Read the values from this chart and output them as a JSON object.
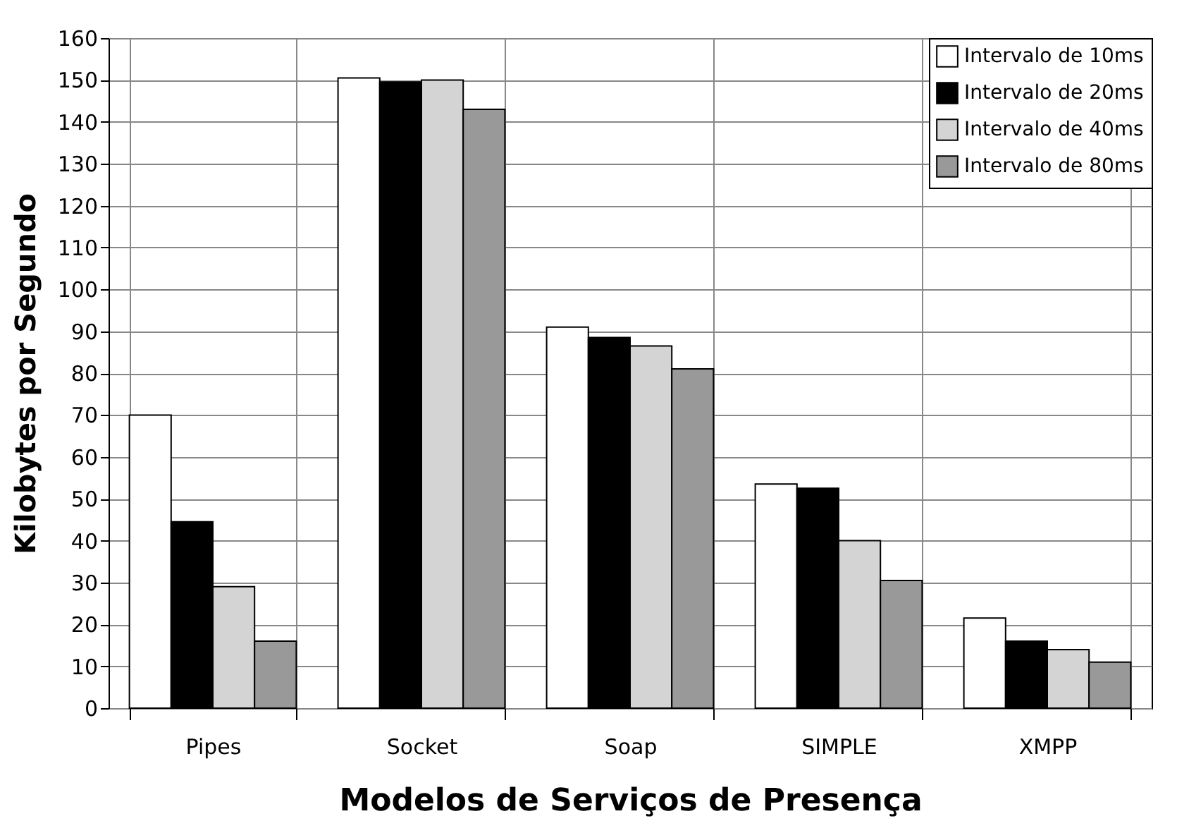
{
  "chart_data": {
    "type": "bar",
    "xlabel": "Modelos de Serviços de Presença",
    "ylabel": "Kilobytes por Segundo",
    "categories": [
      "Pipes",
      "Socket",
      "Soap",
      "SIMPLE",
      "XMPP"
    ],
    "series": [
      {
        "name": "Intervalo de 10ms",
        "color": "#ffffff",
        "values": [
          70,
          150.5,
          91,
          53.5,
          21.5
        ]
      },
      {
        "name": "Intervalo de 20ms",
        "color": "#000000",
        "values": [
          44.5,
          149.5,
          88.5,
          52.5,
          16
        ]
      },
      {
        "name": "Intervalo de 40ms",
        "color": "#d4d4d4",
        "values": [
          29,
          150,
          86.5,
          40,
          14
        ]
      },
      {
        "name": "Intervalo de 80ms",
        "color": "#999999",
        "values": [
          16,
          143,
          81,
          30.5,
          11
        ]
      }
    ],
    "ylim": [
      0,
      160
    ],
    "yticks": [
      0,
      10,
      20,
      30,
      40,
      50,
      60,
      70,
      80,
      90,
      100,
      110,
      120,
      130,
      140,
      150,
      160
    ],
    "grid": true,
    "legend": "top right"
  }
}
